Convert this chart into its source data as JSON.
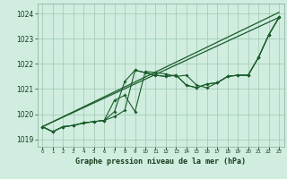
{
  "title": "Graphe pression niveau de la mer (hPa)",
  "bg_color": "#d0ede0",
  "grid_color": "#9dc9b0",
  "line_color": "#1a5c2a",
  "xlim": [
    -0.5,
    23.5
  ],
  "ylim": [
    1018.7,
    1024.4
  ],
  "yticks": [
    1019,
    1020,
    1021,
    1022,
    1023,
    1024
  ],
  "xticks": [
    0,
    1,
    2,
    3,
    4,
    5,
    6,
    7,
    8,
    9,
    10,
    11,
    12,
    13,
    14,
    15,
    16,
    17,
    18,
    19,
    20,
    21,
    22,
    23
  ],
  "series_smooth": {
    "x": [
      0,
      23
    ],
    "y": [
      1019.5,
      1024.05
    ]
  },
  "series_smooth2": {
    "x": [
      0,
      23
    ],
    "y": [
      1019.5,
      1023.85
    ]
  },
  "series_A": {
    "x": [
      0,
      1,
      2,
      3,
      4,
      5,
      6,
      7,
      8,
      9,
      10,
      11,
      12,
      13,
      14,
      15,
      16,
      17,
      18,
      19,
      20,
      21,
      22,
      23
    ],
    "y": [
      1019.5,
      1019.3,
      1019.5,
      1019.55,
      1019.65,
      1019.7,
      1019.75,
      1019.9,
      1020.15,
      1021.75,
      1021.65,
      1021.55,
      1021.5,
      1021.55,
      1021.15,
      1021.05,
      1021.2,
      1021.25,
      1021.5,
      1021.55,
      1021.55,
      1022.25,
      1023.15,
      1023.85
    ]
  },
  "series_B": {
    "x": [
      0,
      1,
      2,
      3,
      4,
      5,
      6,
      7,
      8,
      9,
      10,
      11,
      12,
      13,
      14,
      15,
      16,
      17,
      18,
      19,
      20,
      21,
      22,
      23
    ],
    "y": [
      1019.5,
      1019.3,
      1019.5,
      1019.55,
      1019.65,
      1019.7,
      1019.75,
      1020.55,
      1020.75,
      1020.1,
      1021.7,
      1021.65,
      1021.6,
      1021.5,
      1021.55,
      1021.15,
      1021.05,
      1021.25,
      1021.5,
      1021.55,
      1021.55,
      1022.25,
      1023.15,
      1023.85
    ]
  },
  "series_C": {
    "x": [
      0,
      1,
      2,
      3,
      4,
      5,
      6,
      7,
      8,
      9,
      10,
      11,
      12,
      13,
      14,
      15,
      16,
      17,
      18,
      19,
      20,
      21,
      22,
      23
    ],
    "y": [
      1019.5,
      1019.3,
      1019.5,
      1019.55,
      1019.65,
      1019.7,
      1019.75,
      1020.1,
      1021.3,
      1021.75,
      1021.65,
      1021.55,
      1021.5,
      1021.55,
      1021.15,
      1021.05,
      1021.2,
      1021.25,
      1021.5,
      1021.55,
      1021.55,
      1022.25,
      1023.15,
      1023.85
    ]
  }
}
